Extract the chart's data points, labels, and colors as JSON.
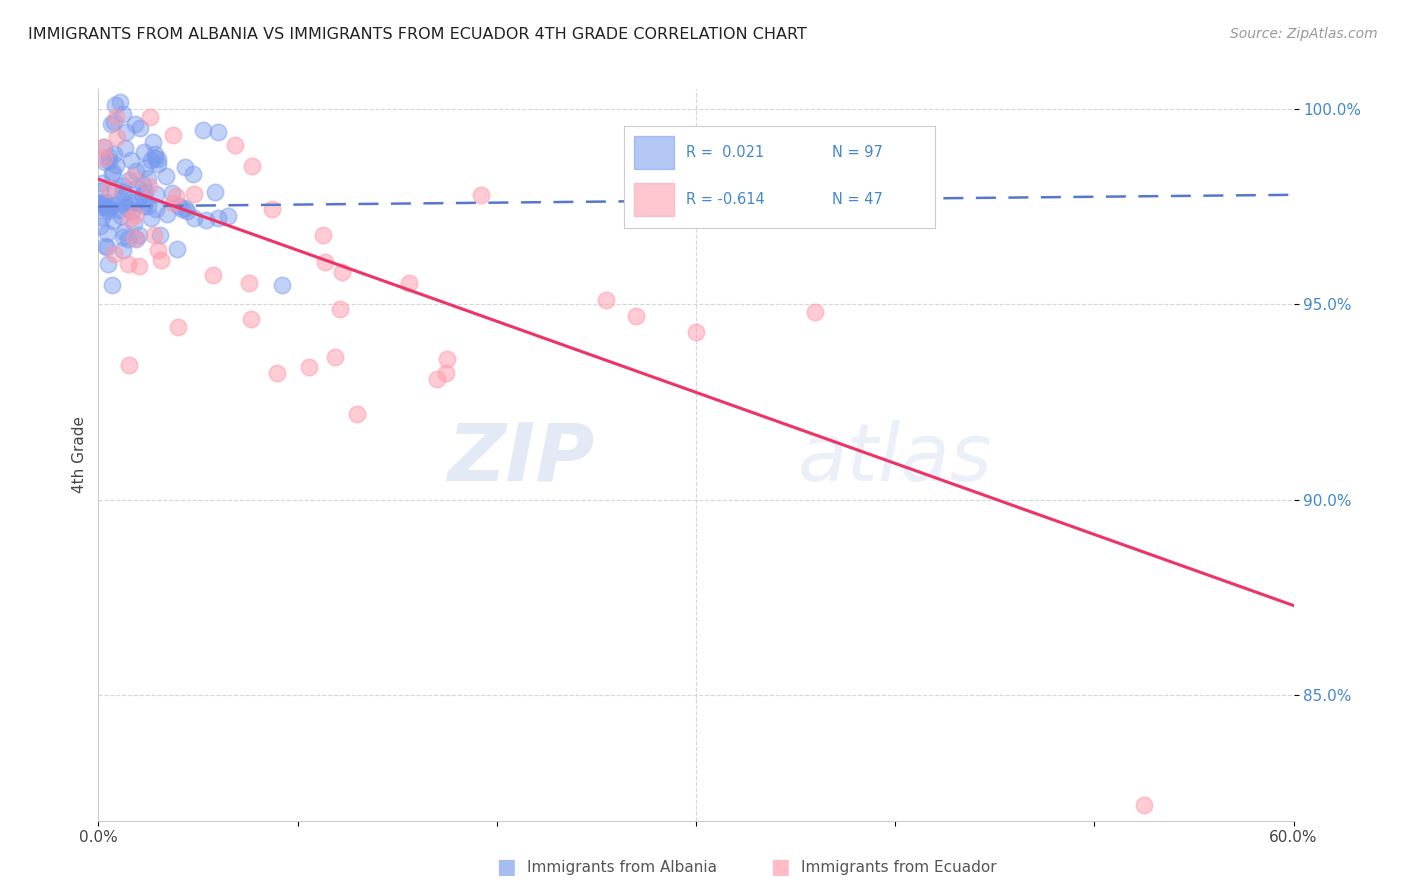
{
  "title": "IMMIGRANTS FROM ALBANIA VS IMMIGRANTS FROM ECUADOR 4TH GRADE CORRELATION CHART",
  "source": "Source: ZipAtlas.com",
  "ylabel": "4th Grade",
  "x_min": 0.0,
  "x_max": 0.6,
  "y_min": 0.818,
  "y_max": 1.005,
  "y_ticks": [
    0.85,
    0.9,
    0.95,
    1.0
  ],
  "y_tick_labels": [
    "85.0%",
    "90.0%",
    "95.0%",
    "100.0%"
  ],
  "grid_color": "#cccccc",
  "background_color": "#ffffff",
  "albania_color": "#7799ee",
  "ecuador_color": "#ff99aa",
  "trend_albania_color": "#5577cc",
  "trend_ecuador_color": "#ee3366",
  "watermark_zip": "ZIP",
  "watermark_atlas": "atlas",
  "albania_trend_x": [
    0.0,
    0.6
  ],
  "albania_trend_y": [
    0.975,
    0.978
  ],
  "ecuador_trend_x": [
    0.0,
    0.6
  ],
  "ecuador_trend_y": [
    0.982,
    0.873
  ]
}
